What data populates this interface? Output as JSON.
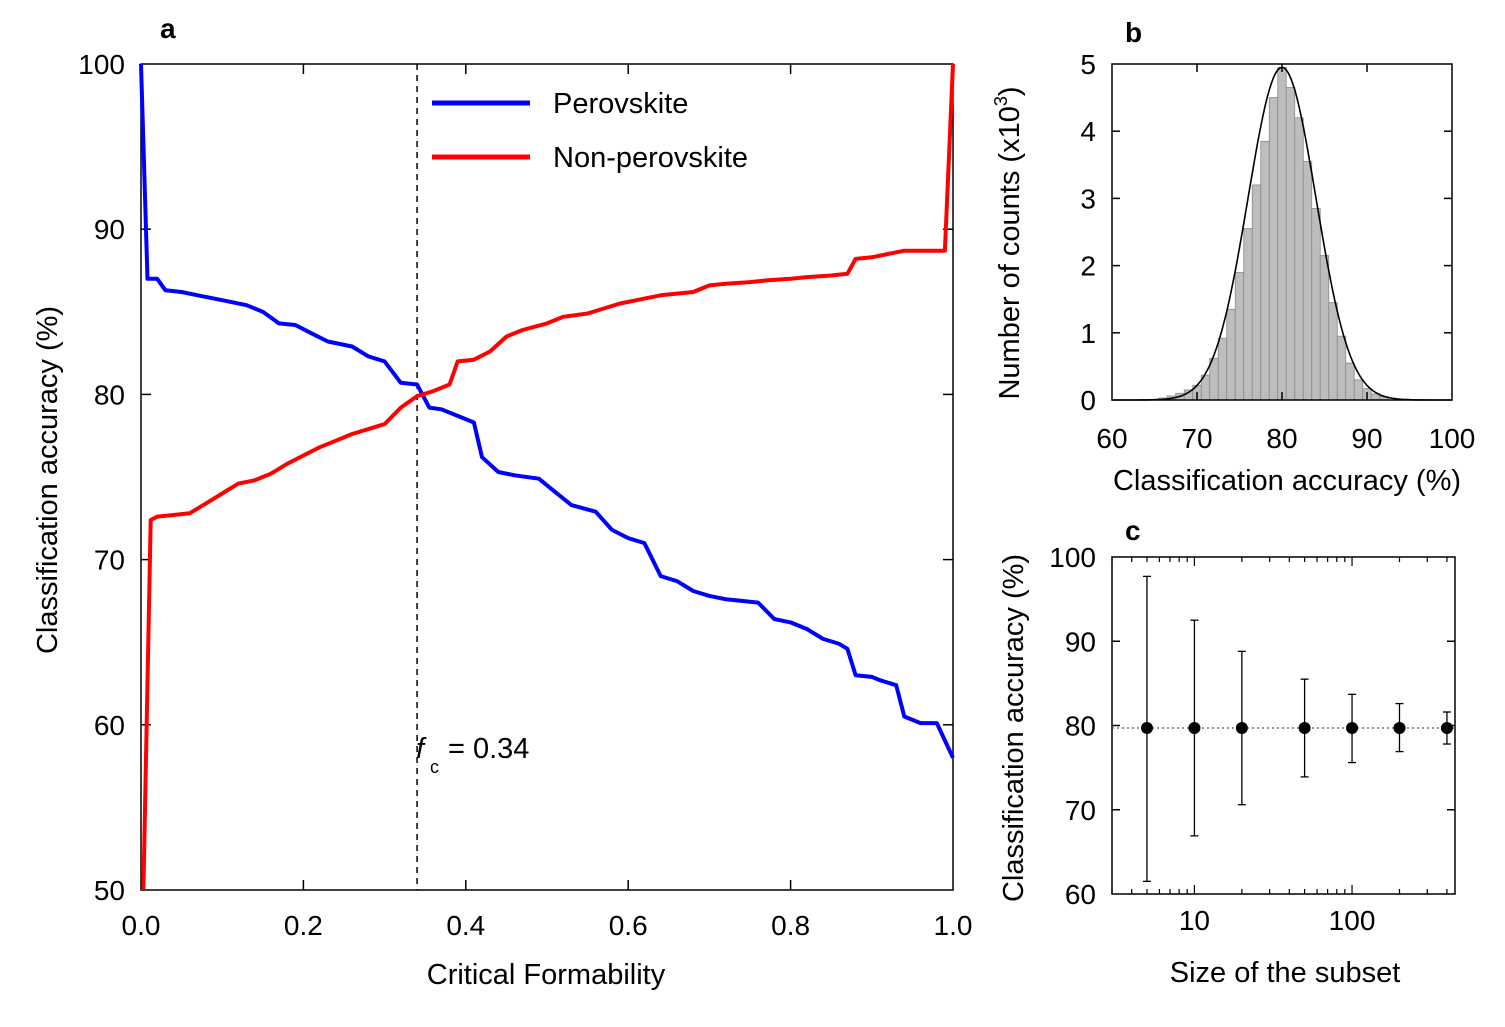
{
  "chart_data": [
    {
      "panel": "a",
      "type": "line",
      "xlabel": "Critical Formability",
      "ylabel": "Classification accuracy (%)",
      "xlim": [
        0.0,
        1.0
      ],
      "ylim": [
        50,
        100
      ],
      "xticks": [
        "0.0",
        "0.2",
        "0.4",
        "0.6",
        "0.8",
        "1.0"
      ],
      "yticks": [
        "50",
        "60",
        "70",
        "80",
        "90",
        "100"
      ],
      "legend_position": "top-right",
      "annotation": {
        "label": "f",
        "subscript": "c",
        "text": "= 0.34",
        "x": 0.34
      },
      "series": [
        {
          "name": "Perovskite",
          "color": "#0000ff",
          "points": [
            [
              0.0,
              100
            ],
            [
              0.008,
              87.0
            ],
            [
              0.02,
              87.0
            ],
            [
              0.03,
              86.3
            ],
            [
              0.05,
              86.2
            ],
            [
              0.07,
              86.0
            ],
            [
              0.1,
              85.7
            ],
            [
              0.13,
              85.4
            ],
            [
              0.15,
              85.0
            ],
            [
              0.17,
              84.3
            ],
            [
              0.19,
              84.2
            ],
            [
              0.21,
              83.7
            ],
            [
              0.23,
              83.2
            ],
            [
              0.26,
              82.9
            ],
            [
              0.28,
              82.3
            ],
            [
              0.3,
              82.0
            ],
            [
              0.32,
              80.7
            ],
            [
              0.34,
              80.6
            ],
            [
              0.355,
              79.2
            ],
            [
              0.37,
              79.1
            ],
            [
              0.39,
              78.7
            ],
            [
              0.41,
              78.3
            ],
            [
              0.42,
              76.2
            ],
            [
              0.44,
              75.3
            ],
            [
              0.46,
              75.1
            ],
            [
              0.49,
              74.9
            ],
            [
              0.51,
              74.1
            ],
            [
              0.53,
              73.3
            ],
            [
              0.56,
              72.9
            ],
            [
              0.58,
              71.8
            ],
            [
              0.6,
              71.3
            ],
            [
              0.62,
              71.0
            ],
            [
              0.64,
              69.0
            ],
            [
              0.66,
              68.7
            ],
            [
              0.68,
              68.1
            ],
            [
              0.7,
              67.8
            ],
            [
              0.72,
              67.6
            ],
            [
              0.74,
              67.5
            ],
            [
              0.76,
              67.4
            ],
            [
              0.78,
              66.4
            ],
            [
              0.8,
              66.2
            ],
            [
              0.82,
              65.8
            ],
            [
              0.84,
              65.2
            ],
            [
              0.86,
              64.9
            ],
            [
              0.87,
              64.6
            ],
            [
              0.88,
              63.0
            ],
            [
              0.9,
              62.9
            ],
            [
              0.91,
              62.7
            ],
            [
              0.93,
              62.4
            ],
            [
              0.94,
              60.5
            ],
            [
              0.96,
              60.1
            ],
            [
              0.98,
              60.1
            ],
            [
              1.0,
              58.0
            ]
          ]
        },
        {
          "name": "Non-perovskite",
          "color": "#ff0000",
          "points": [
            [
              0.003,
              50
            ],
            [
              0.012,
              72.4
            ],
            [
              0.02,
              72.6
            ],
            [
              0.04,
              72.7
            ],
            [
              0.06,
              72.8
            ],
            [
              0.08,
              73.4
            ],
            [
              0.1,
              74.0
            ],
            [
              0.12,
              74.6
            ],
            [
              0.14,
              74.8
            ],
            [
              0.16,
              75.2
            ],
            [
              0.18,
              75.8
            ],
            [
              0.2,
              76.3
            ],
            [
              0.22,
              76.8
            ],
            [
              0.24,
              77.2
            ],
            [
              0.26,
              77.6
            ],
            [
              0.28,
              77.9
            ],
            [
              0.3,
              78.2
            ],
            [
              0.32,
              79.2
            ],
            [
              0.34,
              79.9
            ],
            [
              0.36,
              80.2
            ],
            [
              0.38,
              80.6
            ],
            [
              0.39,
              82.0
            ],
            [
              0.41,
              82.1
            ],
            [
              0.43,
              82.6
            ],
            [
              0.45,
              83.5
            ],
            [
              0.47,
              83.9
            ],
            [
              0.5,
              84.3
            ],
            [
              0.52,
              84.7
            ],
            [
              0.55,
              84.9
            ],
            [
              0.57,
              85.2
            ],
            [
              0.59,
              85.5
            ],
            [
              0.62,
              85.8
            ],
            [
              0.64,
              86.0
            ],
            [
              0.66,
              86.1
            ],
            [
              0.68,
              86.2
            ],
            [
              0.7,
              86.6
            ],
            [
              0.72,
              86.7
            ],
            [
              0.75,
              86.8
            ],
            [
              0.77,
              86.9
            ],
            [
              0.8,
              87.0
            ],
            [
              0.82,
              87.1
            ],
            [
              0.85,
              87.2
            ],
            [
              0.87,
              87.3
            ],
            [
              0.88,
              88.2
            ],
            [
              0.9,
              88.3
            ],
            [
              0.92,
              88.5
            ],
            [
              0.94,
              88.7
            ],
            [
              0.96,
              88.7
            ],
            [
              0.99,
              88.7
            ],
            [
              1.0,
              100
            ]
          ]
        }
      ]
    },
    {
      "panel": "b",
      "type": "bar",
      "xlabel": "Classification accuracy (%)",
      "ylabel": "Number of counts (x10",
      "ylabel_superscript": "3",
      "ylabel_close": ")",
      "xlim": [
        60,
        100
      ],
      "ylim": [
        0,
        5
      ],
      "xticks": [
        "60",
        "70",
        "80",
        "90",
        "100"
      ],
      "yticks": [
        "0",
        "1",
        "2",
        "3",
        "4",
        "5"
      ],
      "bin_width": 1,
      "bins": [
        {
          "x": 66,
          "count": 0.03
        },
        {
          "x": 67,
          "count": 0.06
        },
        {
          "x": 68,
          "count": 0.1
        },
        {
          "x": 69,
          "count": 0.15
        },
        {
          "x": 70,
          "count": 0.22
        },
        {
          "x": 71,
          "count": 0.37
        },
        {
          "x": 72,
          "count": 0.62
        },
        {
          "x": 73,
          "count": 0.92
        },
        {
          "x": 74,
          "count": 1.35
        },
        {
          "x": 75,
          "count": 1.9
        },
        {
          "x": 76,
          "count": 2.55
        },
        {
          "x": 77,
          "count": 3.2
        },
        {
          "x": 78,
          "count": 3.85
        },
        {
          "x": 79,
          "count": 4.5
        },
        {
          "x": 80,
          "count": 4.95
        },
        {
          "x": 81,
          "count": 4.65
        },
        {
          "x": 82,
          "count": 4.2
        },
        {
          "x": 83,
          "count": 3.55
        },
        {
          "x": 84,
          "count": 2.85
        },
        {
          "x": 85,
          "count": 2.15
        },
        {
          "x": 86,
          "count": 1.45
        },
        {
          "x": 87,
          "count": 0.95
        },
        {
          "x": 88,
          "count": 0.55
        },
        {
          "x": 89,
          "count": 0.3
        },
        {
          "x": 90,
          "count": 0.17
        },
        {
          "x": 91,
          "count": 0.09
        },
        {
          "x": 92,
          "count": 0.05
        }
      ],
      "fit": {
        "type": "gaussian",
        "mean": 80,
        "sigma": 4.0,
        "peak": 4.95
      }
    },
    {
      "panel": "c",
      "type": "scatter",
      "xscale": "log",
      "xlabel": "Size of the subset",
      "ylabel": "Classification accuracy (%)",
      "xlim": [
        3,
        450
      ],
      "ylim": [
        60,
        100
      ],
      "xticks": [
        {
          "v": 10,
          "label": "10"
        },
        {
          "v": 100,
          "label": "100"
        }
      ],
      "yticks": [
        "60",
        "70",
        "80",
        "90",
        "100"
      ],
      "reference_line": 79.7,
      "points": [
        {
          "x": 5,
          "y": 79.7,
          "low": 61.5,
          "high": 97.7
        },
        {
          "x": 10,
          "y": 79.7,
          "low": 66.9,
          "high": 92.5
        },
        {
          "x": 20,
          "y": 79.7,
          "low": 70.6,
          "high": 88.8
        },
        {
          "x": 50,
          "y": 79.7,
          "low": 73.9,
          "high": 85.5
        },
        {
          "x": 100,
          "y": 79.7,
          "low": 75.6,
          "high": 83.7
        },
        {
          "x": 200,
          "y": 79.7,
          "low": 76.9,
          "high": 82.6
        },
        {
          "x": 400,
          "y": 79.7,
          "low": 77.8,
          "high": 81.6
        }
      ]
    }
  ]
}
